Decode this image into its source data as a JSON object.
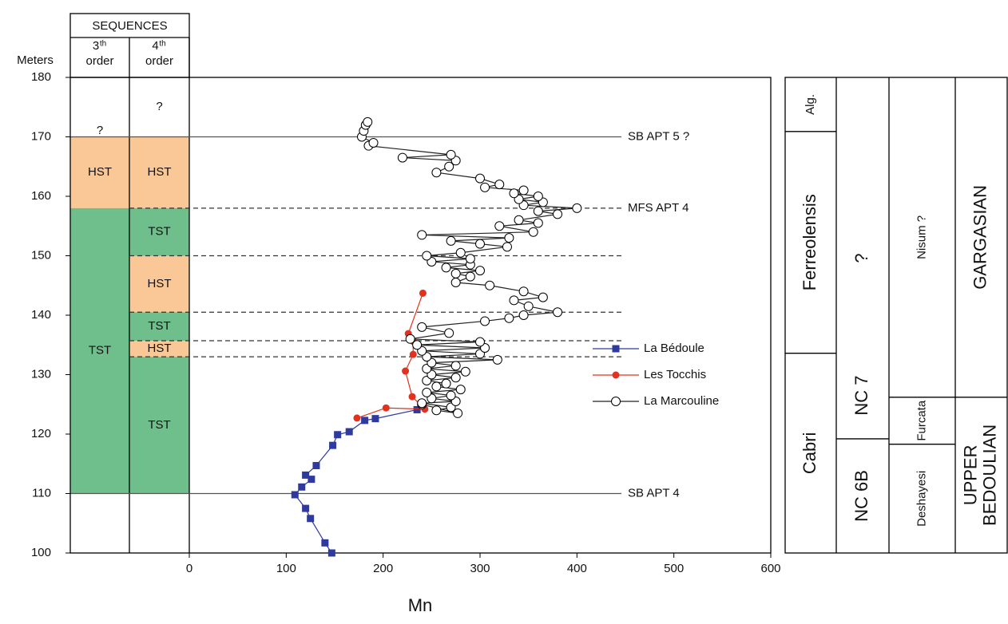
{
  "chart_data": {
    "type": "line",
    "x_label": "Mn",
    "y_label": "Meters",
    "xlim": [
      0,
      600
    ],
    "xticks": [
      0,
      100,
      200,
      300,
      400,
      500,
      600
    ],
    "ylim": [
      100,
      180
    ],
    "yticks": [
      100,
      110,
      120,
      130,
      140,
      150,
      160,
      170,
      180
    ],
    "series": [
      {
        "name": "La Bédoule",
        "color": "#2e3a9e",
        "marker": "square",
        "x": [
          147,
          140,
          125,
          120,
          109,
          116,
          126,
          120,
          131,
          148,
          153,
          165,
          181,
          192,
          235
        ],
        "values": [
          100,
          101.7,
          105.8,
          107.5,
          109.8,
          111.1,
          112.4,
          113.1,
          114.7,
          118.1,
          119.9,
          120.4,
          122.3,
          122.6,
          124.1
        ]
      },
      {
        "name": "Les Tocchis",
        "color": "#e0321f",
        "marker": "circle",
        "x": [
          173,
          203,
          243,
          230,
          223,
          231,
          231,
          226,
          241
        ],
        "values": [
          122.7,
          124.4,
          124.2,
          126.3,
          130.6,
          133.4,
          135.6,
          136.9,
          143.7
        ]
      },
      {
        "name": "La Marcouline",
        "color": "#222222",
        "marker": "open-circle",
        "x": [
          240,
          277,
          255,
          270,
          240,
          275,
          250,
          270,
          245,
          280,
          255,
          265,
          245,
          275,
          250,
          285,
          245,
          275,
          250,
          318,
          245,
          300,
          240,
          305,
          235,
          300,
          228,
          268,
          240,
          305,
          330,
          345,
          380,
          350,
          335,
          365,
          345,
          310,
          275,
          290,
          275,
          300,
          265,
          290,
          250,
          290,
          245,
          280,
          328,
          300,
          270,
          330,
          240,
          355,
          320,
          360,
          340,
          380,
          360,
          400,
          345,
          365,
          340,
          360,
          335,
          345,
          305,
          320,
          300,
          255,
          268,
          275,
          220,
          270,
          185,
          190,
          178,
          180,
          182,
          184
        ],
        "values": [
          125,
          123.5,
          124,
          124.5,
          125.2,
          125.5,
          126,
          126.5,
          127,
          127.5,
          128,
          128.5,
          129,
          129.5,
          130,
          130.5,
          131,
          131.5,
          132,
          132.5,
          133,
          133.5,
          134,
          134.5,
          135,
          135.5,
          136,
          137,
          138,
          139,
          139.5,
          140,
          140.5,
          141.5,
          142.5,
          143,
          144,
          145,
          145.5,
          146.5,
          147,
          147.5,
          148,
          148.5,
          149,
          149.5,
          150,
          150.5,
          151.5,
          152,
          152.5,
          153,
          153.5,
          154,
          155,
          155.5,
          156,
          157,
          157.5,
          158,
          158.5,
          159,
          159.5,
          160,
          160.5,
          161,
          161.5,
          162,
          163,
          164,
          165,
          166,
          166.5,
          167,
          168.5,
          169,
          170,
          171,
          172,
          172.5
        ]
      }
    ],
    "surfaces": [
      {
        "label": "SB APT 5 ?",
        "depth": 170,
        "style": "solid"
      },
      {
        "label": "MFS APT 4",
        "depth": 158,
        "style": "dashed"
      },
      {
        "depth": 150,
        "style": "dashed"
      },
      {
        "depth": 140.5,
        "style": "dashed"
      },
      {
        "depth": 135.7,
        "style": "dashed"
      },
      {
        "depth": 133,
        "style": "dashed"
      },
      {
        "label": "SB APT 4",
        "depth": 110,
        "style": "solid"
      }
    ],
    "sequences": {
      "title": "SEQUENCES",
      "columns": [
        {
          "number": "3",
          "suffix": "th",
          "label": "order",
          "units": [
            {
              "label": "?",
              "from": 170,
              "to": 172
            },
            {
              "label": "HST",
              "from": 158,
              "to": 170,
              "color": "#f9c896"
            },
            {
              "label": "TST",
              "from": 110,
              "to": 158,
              "color": "#6fbf8c"
            }
          ]
        },
        {
          "number": "4",
          "suffix": "th",
          "label": "order",
          "units": [
            {
              "label": "?",
              "from": 170,
              "to": 180
            },
            {
              "label": "HST",
              "from": 158,
              "to": 170,
              "color": "#f9c896"
            },
            {
              "label": "TST",
              "from": 150,
              "to": 158,
              "color": "#6fbf8c"
            },
            {
              "label": "HST",
              "from": 140.5,
              "to": 150,
              "color": "#f9c896"
            },
            {
              "label": "TST",
              "from": 135.7,
              "to": 140.5,
              "color": "#6fbf8c"
            },
            {
              "label": "HST",
              "from": 133,
              "to": 135.7,
              "color": "#f9c896"
            },
            {
              "label": "TST",
              "from": 110,
              "to": 133,
              "color": "#6fbf8c"
            }
          ]
        }
      ]
    },
    "biozones": [
      [
        {
          "label": "Alg.",
          "from": 170.9,
          "to": 180
        },
        {
          "label": "Ferreolensis",
          "from": 133.6,
          "to": 170.9
        },
        {
          "label": "Cabri",
          "from": 100,
          "to": 133.6
        }
      ],
      [
        {
          "label": "NC 7",
          "note": "?",
          "from": 119.2,
          "to": 180
        },
        {
          "label": "NC 6B",
          "from": 100,
          "to": 119.2
        }
      ],
      [
        {
          "label": "Nisum ?",
          "from": 126.2,
          "to": 180
        },
        {
          "label": "Furcata",
          "from": 118.3,
          "to": 126.2
        },
        {
          "label": "Deshayesi",
          "from": 100,
          "to": 118.3
        }
      ],
      [
        {
          "label": [
            "GARGASIAN"
          ],
          "from": 126.2,
          "to": 180
        },
        {
          "label": [
            "UPPER",
            "BEDOULIAN"
          ],
          "from": 100,
          "to": 126.2
        }
      ]
    ]
  }
}
